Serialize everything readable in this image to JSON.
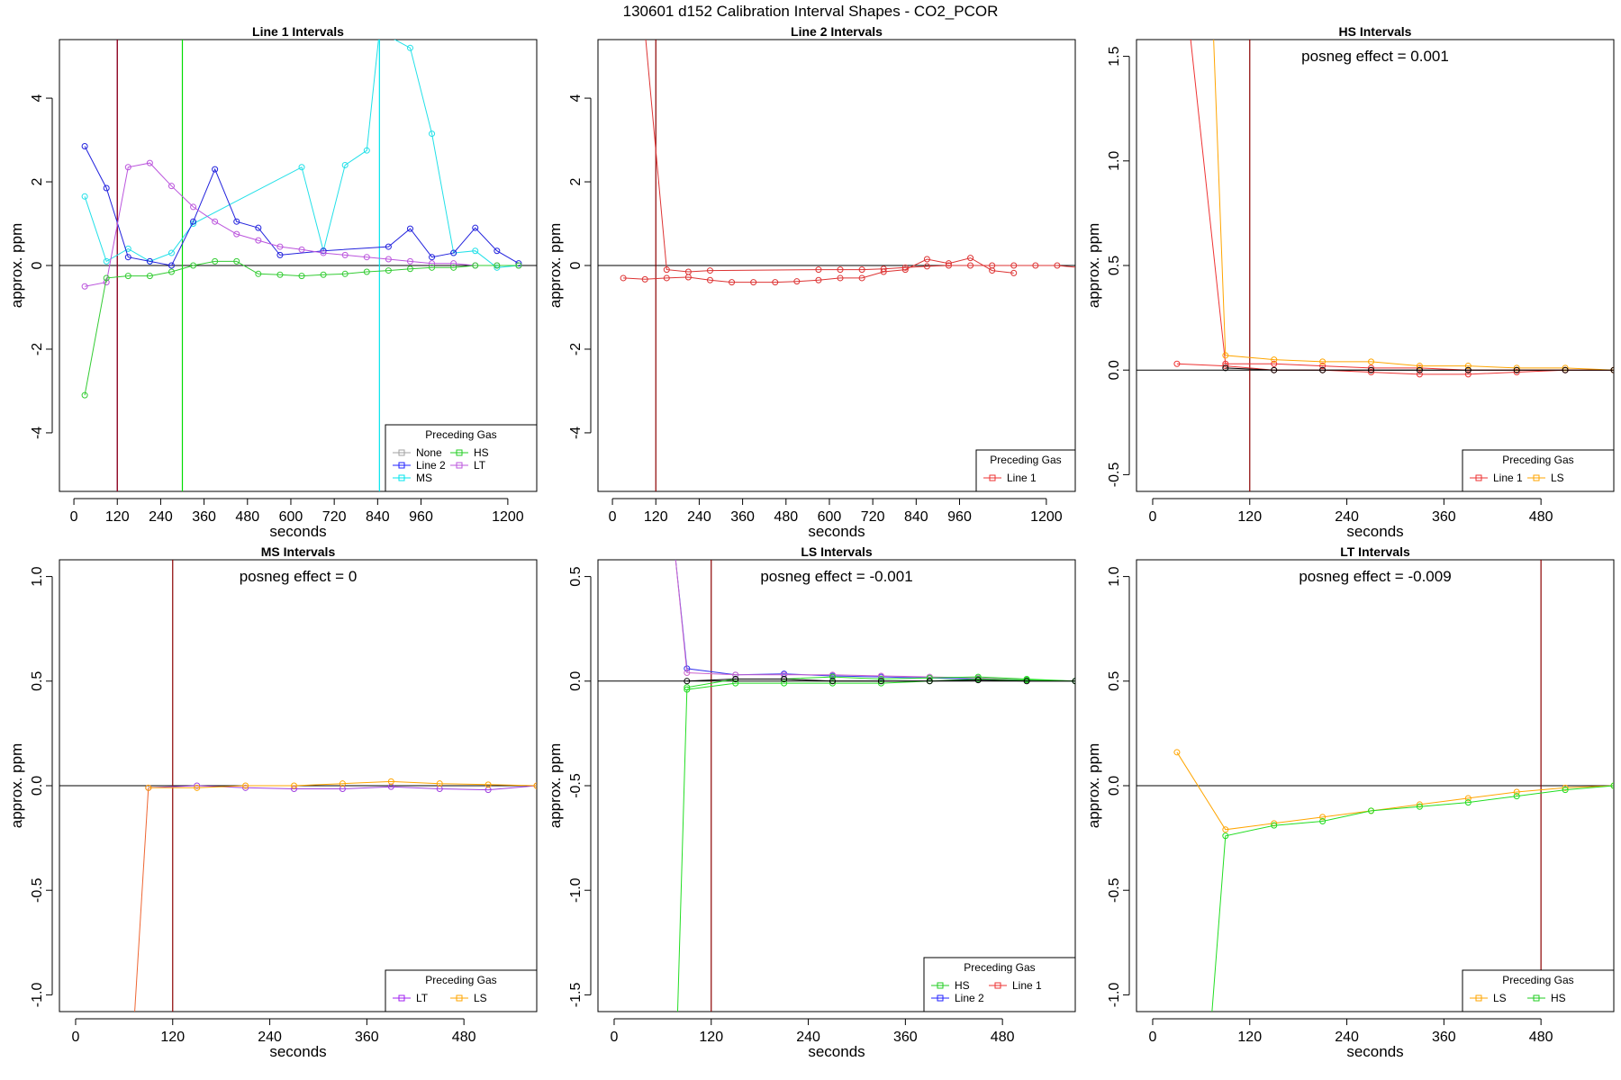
{
  "title": "130601  d152   Calibration Interval Shapes - CO2_PCOR",
  "chart_data": [
    {
      "type": "line",
      "title": "Line 1 Intervals",
      "xlabel": "seconds",
      "ylabel": "approx. ppm",
      "xlim": [
        -40,
        1280
      ],
      "ylim": [
        -5.4,
        5.4
      ],
      "xticks": [
        0,
        120,
        240,
        360,
        480,
        600,
        720,
        840,
        960,
        1200
      ],
      "xtick_labels": [
        "0",
        "120",
        "240",
        "360",
        "480",
        "600",
        "720",
        "840",
        "960",
        "1200"
      ],
      "yticks": [
        -4,
        -2,
        0,
        2,
        4
      ],
      "ytick_labels": [
        "-4",
        "-2",
        "0",
        "2",
        "4"
      ],
      "vlines": [
        {
          "x": 120,
          "color": "#a020f0"
        },
        {
          "x": 120,
          "color": "#8b0000"
        },
        {
          "x": 300,
          "color": "#00dd00"
        },
        {
          "x": 845,
          "color": "#00e5ee"
        }
      ],
      "annotation": "",
      "legend": {
        "title": "Preceding Gas",
        "position": "bottom-right",
        "columns": 2,
        "entries": [
          {
            "name": "None",
            "color": "#a0a0a0"
          },
          {
            "name": "HS",
            "color": "#22cc22"
          },
          {
            "name": "Line 2",
            "color": "#2222ff"
          },
          {
            "name": "LT",
            "color": "#bb55dd"
          },
          {
            "name": "MS",
            "color": "#00e5ee"
          }
        ]
      },
      "series": [
        {
          "name": "MS",
          "color": "#22e0e8",
          "x": [
            30,
            90,
            150,
            210,
            270,
            330,
            630,
            690,
            750,
            810,
            845,
            930,
            990,
            1050,
            1110,
            1170,
            1230
          ],
          "y": [
            1.65,
            0.1,
            0.4,
            0.1,
            0.3,
            1.0,
            2.35,
            0.35,
            2.4,
            2.75,
            5.6,
            5.2,
            3.15,
            0.3,
            0.35,
            -0.05,
            0.0
          ]
        },
        {
          "name": "Line 2",
          "color": "#2222dd",
          "x": [
            30,
            90,
            150,
            210,
            270,
            330,
            390,
            450,
            510,
            570,
            690,
            870,
            930,
            990,
            1050,
            1110,
            1170,
            1230
          ],
          "y": [
            2.85,
            1.85,
            0.2,
            0.1,
            0.0,
            1.05,
            2.3,
            1.05,
            0.9,
            0.25,
            0.35,
            0.45,
            0.88,
            0.2,
            0.3,
            0.9,
            0.35,
            0.05
          ]
        },
        {
          "name": "LT",
          "color": "#bb55dd",
          "x": [
            30,
            90,
            150,
            210,
            270,
            330,
            390,
            450,
            510,
            570,
            630,
            690,
            750,
            810,
            870,
            930,
            990,
            1050,
            1110,
            1170,
            1230
          ],
          "y": [
            -0.5,
            -0.4,
            2.35,
            2.45,
            1.9,
            1.4,
            1.05,
            0.75,
            0.6,
            0.45,
            0.38,
            0.3,
            0.25,
            0.2,
            0.15,
            0.1,
            0.05,
            0.05,
            0.0,
            0.0,
            0.0
          ]
        },
        {
          "name": "HS",
          "color": "#33cc33",
          "x": [
            30,
            90,
            150,
            210,
            270,
            330,
            390,
            450,
            510,
            570,
            630,
            690,
            750,
            810,
            870,
            930,
            990,
            1050,
            1110,
            1170,
            1230
          ],
          "y": [
            -3.1,
            -0.3,
            -0.25,
            -0.25,
            -0.15,
            0.0,
            0.1,
            0.1,
            -0.2,
            -0.22,
            -0.25,
            -0.22,
            -0.2,
            -0.15,
            -0.12,
            -0.08,
            -0.05,
            -0.05,
            0.0,
            0.0,
            0.0
          ]
        }
      ]
    },
    {
      "type": "line",
      "title": "Line 2 Intervals",
      "xlabel": "seconds",
      "ylabel": "approx. ppm",
      "xlim": [
        -40,
        1280
      ],
      "ylim": [
        -5.4,
        5.4
      ],
      "xticks": [
        0,
        120,
        240,
        360,
        480,
        600,
        720,
        840,
        960,
        1200
      ],
      "xtick_labels": [
        "0",
        "120",
        "240",
        "360",
        "480",
        "600",
        "720",
        "840",
        "960",
        "1200"
      ],
      "yticks": [
        -4,
        -2,
        0,
        2,
        4
      ],
      "ytick_labels": [
        "-4",
        "-2",
        "0",
        "2",
        "4"
      ],
      "vlines": [
        {
          "x": 120,
          "color": "#8b0000"
        }
      ],
      "annotation": "",
      "legend": {
        "title": "Preceding Gas",
        "position": "bottom-right",
        "columns": 1,
        "entries": [
          {
            "name": "Line 1",
            "color": "#ee3333"
          }
        ]
      },
      "series": [
        {
          "name": "Line 1 (a)",
          "color": "#dd3333",
          "x": [
            90,
            150,
            210,
            270,
            570,
            630,
            690,
            750,
            810,
            870,
            930,
            990,
            1050,
            1110,
            1170,
            1230,
            1290
          ],
          "y": [
            5.6,
            -0.1,
            -0.15,
            -0.12,
            -0.1,
            -0.1,
            -0.1,
            -0.08,
            -0.05,
            -0.02,
            0.0,
            0.0,
            0.0,
            0.0,
            0.0,
            0.0,
            -0.05
          ]
        },
        {
          "name": "Line 1 (b)",
          "color": "#dd3333",
          "x": [
            30,
            90,
            150,
            210,
            270,
            330,
            390,
            450,
            510,
            570,
            630,
            690,
            750,
            810,
            870,
            930,
            990,
            1050,
            1110
          ],
          "y": [
            -0.3,
            -0.33,
            -0.3,
            -0.28,
            -0.35,
            -0.4,
            -0.4,
            -0.4,
            -0.38,
            -0.35,
            -0.3,
            -0.3,
            -0.15,
            -0.1,
            0.15,
            0.05,
            0.18,
            -0.12,
            -0.18
          ]
        }
      ]
    },
    {
      "type": "line",
      "title": "HS Intervals",
      "xlabel": "seconds",
      "ylabel": "approx. ppm",
      "xlim": [
        -20,
        570
      ],
      "ylim": [
        -0.58,
        1.58
      ],
      "xticks": [
        0,
        120,
        240,
        360,
        480
      ],
      "xtick_labels": [
        "0",
        "120",
        "240",
        "360",
        "480"
      ],
      "yticks": [
        -0.5,
        0.0,
        0.5,
        1.0,
        1.5
      ],
      "ytick_labels": [
        "-0.5",
        "0.0",
        "0.5",
        "1.0",
        "1.5"
      ],
      "vlines": [
        {
          "x": 120,
          "color": "#8b0000"
        }
      ],
      "annotation": "posneg effect = 0.001",
      "legend": {
        "title": "Preceding Gas",
        "position": "bottom-right",
        "columns": 2,
        "entries": [
          {
            "name": "Line 1",
            "color": "#ee3333"
          },
          {
            "name": "LS",
            "color": "#ffa500"
          }
        ]
      },
      "series": [
        {
          "name": "Line 1 (a)",
          "color": "#ee3333",
          "x": [
            30,
            90,
            150,
            210,
            270,
            330,
            390,
            450,
            510,
            570
          ],
          "y": [
            0.03,
            0.02,
            0.0,
            0.0,
            -0.01,
            -0.02,
            -0.02,
            -0.01,
            0.0,
            0.0
          ]
        },
        {
          "name": "Line 1 (b)",
          "color": "#ee3333",
          "x": [
            45,
            90,
            150,
            210,
            270,
            330,
            390,
            450,
            510,
            570
          ],
          "y": [
            1.65,
            0.03,
            0.03,
            0.02,
            0.01,
            0.01,
            0.0,
            0.0,
            0.0,
            0.0
          ]
        },
        {
          "name": "LS",
          "color": "#ffa500",
          "x": [
            75,
            90,
            150,
            210,
            270,
            330,
            390,
            450,
            510,
            570
          ],
          "y": [
            1.62,
            0.07,
            0.05,
            0.04,
            0.04,
            0.02,
            0.02,
            0.01,
            0.01,
            0.0
          ]
        },
        {
          "name": "Black",
          "color": "#000000",
          "x": [
            90,
            150,
            210,
            270,
            330,
            390,
            450,
            510,
            570
          ],
          "y": [
            0.01,
            0.0,
            0.0,
            0.0,
            0.0,
            0.0,
            0.0,
            0.0,
            0.0
          ]
        }
      ]
    },
    {
      "type": "line",
      "title": "MS Intervals",
      "xlabel": "seconds",
      "ylabel": "approx. ppm",
      "xlim": [
        -20,
        570
      ],
      "ylim": [
        -1.08,
        1.08
      ],
      "xticks": [
        0,
        120,
        240,
        360,
        480
      ],
      "xtick_labels": [
        "0",
        "120",
        "240",
        "360",
        "480"
      ],
      "yticks": [
        -1.0,
        -0.5,
        0.0,
        0.5,
        1.0
      ],
      "ytick_labels": [
        "-1.0",
        "-0.5",
        "0.0",
        "0.5",
        "1.0"
      ],
      "vlines": [
        {
          "x": 120,
          "color": "#8b0000"
        }
      ],
      "annotation": "posneg effect = 0",
      "legend": {
        "title": "Preceding Gas",
        "position": "bottom-right",
        "columns": 2,
        "entries": [
          {
            "name": "LT",
            "color": "#a020f0"
          },
          {
            "name": "LS",
            "color": "#ffa500"
          }
        ]
      },
      "series": [
        {
          "name": "LS steep",
          "color": "#ee6633",
          "x": [
            72,
            90
          ],
          "y": [
            -1.15,
            -0.01
          ]
        },
        {
          "name": "LT",
          "color": "#a040e0",
          "x": [
            90,
            150,
            210,
            270,
            330,
            390,
            450,
            510,
            570
          ],
          "y": [
            -0.01,
            0.0,
            -0.01,
            -0.015,
            -0.015,
            -0.005,
            -0.015,
            -0.02,
            0.0
          ]
        },
        {
          "name": "LS",
          "color": "#ffa500",
          "x": [
            90,
            150,
            210,
            270,
            330,
            390,
            450,
            510,
            570
          ],
          "y": [
            -0.01,
            -0.01,
            0.0,
            0.0,
            0.01,
            0.02,
            0.01,
            0.005,
            0.0
          ]
        }
      ]
    },
    {
      "type": "line",
      "title": "LS Intervals",
      "xlabel": "seconds",
      "ylabel": "approx. ppm",
      "xlim": [
        -20,
        570
      ],
      "ylim": [
        -1.58,
        0.58
      ],
      "xticks": [
        0,
        120,
        240,
        360,
        480
      ],
      "xtick_labels": [
        "0",
        "120",
        "240",
        "360",
        "480"
      ],
      "yticks": [
        -1.5,
        -1.0,
        -0.5,
        0.0,
        0.5
      ],
      "ytick_labels": [
        "-1.5",
        "-1.0",
        "-0.5",
        "0.0",
        "0.5"
      ],
      "vlines": [
        {
          "x": 120,
          "color": "#8b0000"
        }
      ],
      "annotation": "posneg effect = -0.001",
      "legend": {
        "title": "Preceding Gas",
        "position": "bottom-right",
        "columns": 2,
        "entries": [
          {
            "name": "HS",
            "color": "#22cc22"
          },
          {
            "name": "Line 1",
            "color": "#ee3333"
          },
          {
            "name": "Line 2",
            "color": "#2222ff"
          }
        ]
      },
      "series": [
        {
          "name": "Line 2",
          "color": "#3333ee",
          "x": [
            75,
            90,
            150,
            210,
            270,
            330,
            390,
            450,
            510,
            570
          ],
          "y": [
            0.62,
            0.06,
            0.03,
            0.035,
            0.025,
            0.02,
            0.015,
            0.01,
            0.005,
            0.0
          ]
        },
        {
          "name": "Line 1",
          "color": "#cc66cc",
          "x": [
            75,
            90,
            150,
            210,
            270,
            330,
            390,
            450,
            510,
            570
          ],
          "y": [
            0.62,
            0.04,
            0.03,
            0.03,
            0.03,
            0.025,
            0.02,
            0.015,
            0.005,
            0.0
          ]
        },
        {
          "name": "HS",
          "color": "#22dd22",
          "x": [
            78,
            90,
            150,
            210,
            270,
            330,
            390,
            450,
            510,
            570
          ],
          "y": [
            -1.65,
            -0.04,
            -0.01,
            -0.01,
            -0.01,
            -0.01,
            0.0,
            0.01,
            0.005,
            0.0
          ]
        },
        {
          "name": "HS (b)",
          "color": "#22dd22",
          "x": [
            90,
            150,
            210,
            270,
            330,
            390,
            450,
            510,
            570
          ],
          "y": [
            -0.03,
            0.01,
            0.01,
            0.02,
            0.01,
            0.015,
            0.02,
            0.01,
            0.0
          ]
        },
        {
          "name": "Black",
          "color": "#000000",
          "x": [
            90,
            150,
            210,
            270,
            330,
            390,
            450,
            510,
            570
          ],
          "y": [
            0.0,
            0.01,
            0.01,
            0.0,
            0.0,
            0.0,
            0.005,
            0.0,
            0.0
          ]
        }
      ]
    },
    {
      "type": "line",
      "title": "LT Intervals",
      "xlabel": "seconds",
      "ylabel": "approx. ppm",
      "xlim": [
        -20,
        570
      ],
      "ylim": [
        -1.08,
        1.08
      ],
      "xticks": [
        0,
        120,
        240,
        360,
        480
      ],
      "xtick_labels": [
        "0",
        "120",
        "240",
        "360",
        "480"
      ],
      "yticks": [
        -1.0,
        -0.5,
        0.0,
        0.5,
        1.0
      ],
      "ytick_labels": [
        "-1.0",
        "-0.5",
        "0.0",
        "0.5",
        "1.0"
      ],
      "vlines": [
        {
          "x": 480,
          "color": "#8b0000"
        }
      ],
      "annotation": "posneg effect = -0.009",
      "legend": {
        "title": "Preceding Gas",
        "position": "bottom-right",
        "columns": 2,
        "entries": [
          {
            "name": "LS",
            "color": "#ffa500"
          },
          {
            "name": "HS",
            "color": "#22cc22"
          }
        ]
      },
      "series": [
        {
          "name": "LS",
          "color": "#ffa500",
          "x": [
            30,
            90,
            150,
            210,
            270,
            330,
            390,
            450,
            510,
            570
          ],
          "y": [
            0.16,
            -0.21,
            -0.18,
            -0.15,
            -0.12,
            -0.09,
            -0.06,
            -0.03,
            -0.01,
            0.0
          ]
        },
        {
          "name": "HS",
          "color": "#22dd22",
          "x": [
            72,
            90,
            150,
            210,
            270,
            330,
            390,
            450,
            510,
            570
          ],
          "y": [
            -1.15,
            -0.24,
            -0.19,
            -0.17,
            -0.12,
            -0.1,
            -0.08,
            -0.05,
            -0.02,
            0.0
          ]
        }
      ]
    }
  ]
}
